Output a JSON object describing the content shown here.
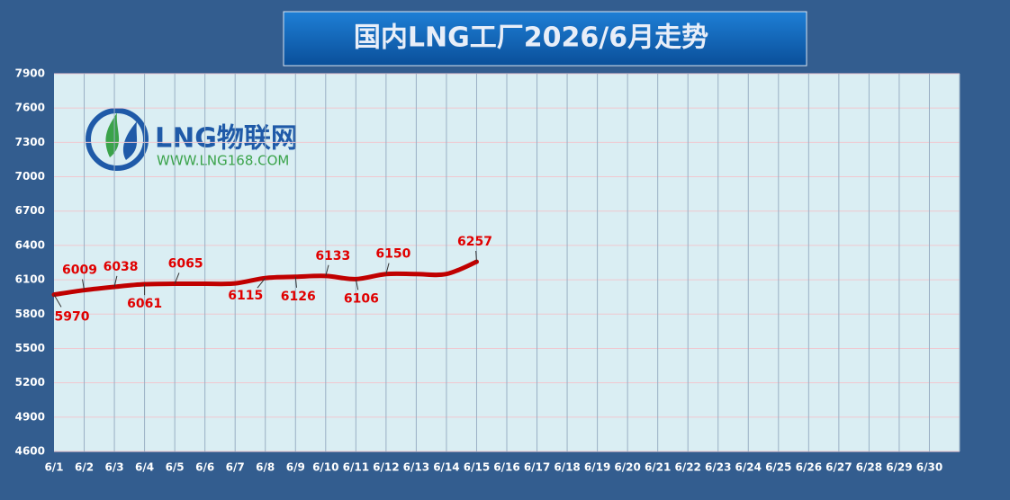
{
  "chart_data": {
    "type": "line",
    "title": "国内LNG工厂2026/6月走势",
    "categories": [
      "6/1",
      "6/2",
      "6/3",
      "6/4",
      "6/5",
      "6/6",
      "6/7",
      "6/8",
      "6/9",
      "6/10",
      "6/11",
      "6/12",
      "6/13",
      "6/14",
      "6/15",
      "6/16",
      "6/17",
      "6/18",
      "6/19",
      "6/20",
      "6/21",
      "6/22",
      "6/23",
      "6/24",
      "6/25",
      "6/26",
      "6/27",
      "6/28",
      "6/29",
      "6/30"
    ],
    "series": [
      {
        "color": "#c00000",
        "values": [
          5970,
          6009,
          6038,
          6061,
          6065,
          6065,
          6068,
          6115,
          6126,
          6133,
          6106,
          6150,
          6150,
          6150,
          6257,
          null,
          null,
          null,
          null,
          null,
          null,
          null,
          null,
          null,
          null,
          null,
          null,
          null,
          null,
          null
        ],
        "value_labels": [
          "5970",
          "6009",
          "6038",
          "6061",
          "6065",
          null,
          null,
          "6115",
          "6126",
          "6133",
          "6106",
          "6150",
          null,
          null,
          "6257",
          null,
          null,
          null,
          null,
          null,
          null,
          null,
          null,
          null,
          null,
          null,
          null,
          null,
          null,
          null
        ]
      }
    ],
    "ylim": [
      4600,
      7900
    ],
    "yticks": [
      4600,
      4900,
      5200,
      5500,
      5800,
      6100,
      6400,
      6700,
      7000,
      7300,
      7600,
      7900
    ],
    "grid": true
  },
  "logo": {
    "name": "LNG物联网",
    "url": "WWW.LNG168.COM"
  }
}
